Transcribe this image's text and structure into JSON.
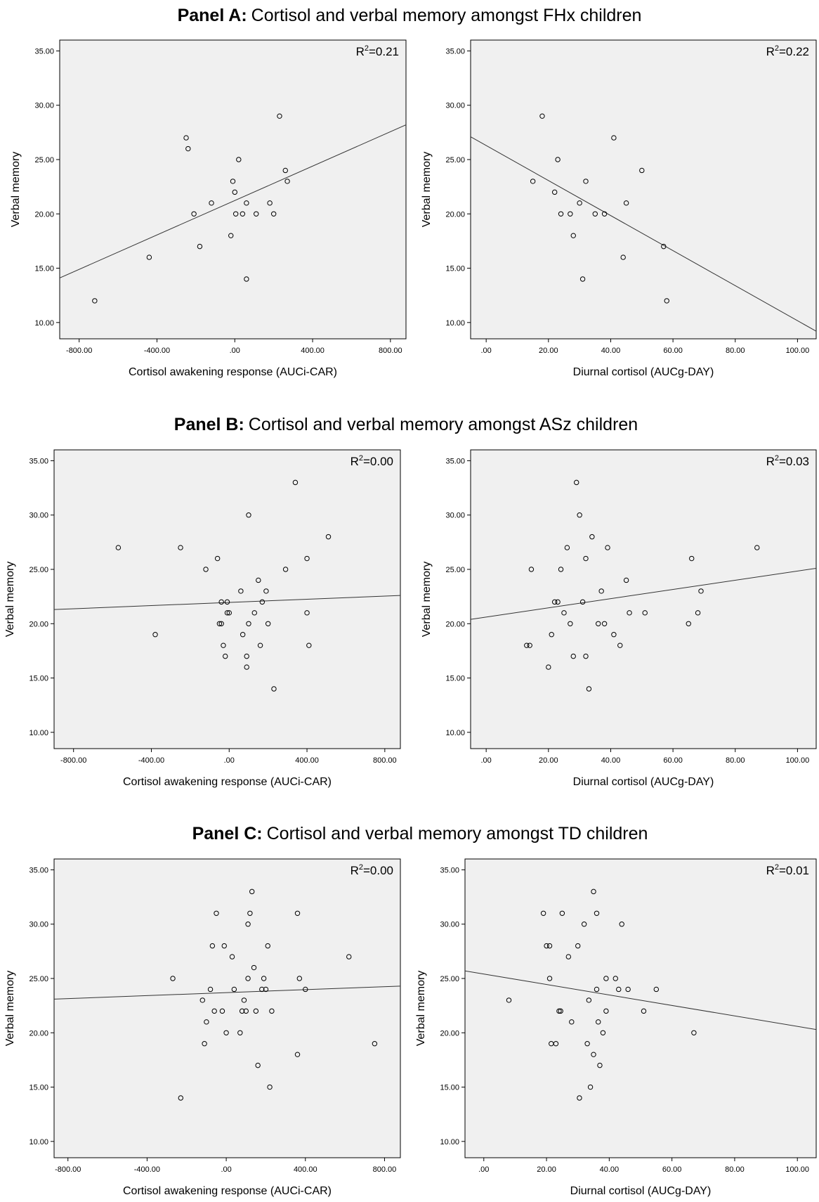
{
  "panels": [
    {
      "label": "Panel A:",
      "title": "Cortisol and verbal memory amongst FHx children"
    },
    {
      "label": "Panel B:",
      "title": "Cortisol and verbal memory amongst ASz children"
    },
    {
      "label": "Panel C:",
      "title": "Cortisol and verbal memory amongst TD children"
    }
  ],
  "chart_data": [
    {
      "id": "A-car",
      "type": "scatter",
      "xlabel": "Cortisol awakening response (AUCi-CAR)",
      "ylabel": "Verbal memory",
      "r2": "R",
      "r2_value": "=0.21",
      "xlim": [
        -900,
        880
      ],
      "ylim": [
        8.5,
        36
      ],
      "xticks": [
        -800,
        -400,
        0,
        400,
        800
      ],
      "xtick_labels": [
        "-800.00",
        "-400.00",
        ".00",
        "400.00",
        "800.00"
      ],
      "yticks": [
        10,
        15,
        20,
        25,
        30,
        35
      ],
      "ytick_labels": [
        "10.00",
        "15.00",
        "20.00",
        "25.00",
        "30.00",
        "35.00"
      ],
      "fit": {
        "x": [
          -900,
          880
        ],
        "y": [
          14.1,
          28.2
        ]
      },
      "x": [
        -720,
        -440,
        -250,
        -240,
        -210,
        -180,
        -120,
        -20,
        -10,
        0,
        5,
        20,
        40,
        60,
        60,
        110,
        180,
        200,
        230,
        260,
        270
      ],
      "y": [
        12,
        16,
        27,
        26,
        20,
        17,
        21,
        18,
        23,
        22,
        20,
        25,
        20,
        14,
        21,
        20,
        21,
        20,
        29,
        24,
        23
      ]
    },
    {
      "id": "A-day",
      "type": "scatter",
      "xlabel": "Diurnal cortisol (AUCg-DAY)",
      "ylabel": "Verbal memory",
      "r2": "R",
      "r2_value": "=0.22",
      "xlim": [
        -5,
        106
      ],
      "ylim": [
        8.5,
        36
      ],
      "xticks": [
        0,
        20,
        40,
        60,
        80,
        100
      ],
      "xtick_labels": [
        ".00",
        "20.00",
        "40.00",
        "60.00",
        "80.00",
        "100.00"
      ],
      "yticks": [
        10,
        15,
        20,
        25,
        30,
        35
      ],
      "ytick_labels": [
        "10.00",
        "15.00",
        "20.00",
        "25.00",
        "30.00",
        "35.00"
      ],
      "fit": {
        "x": [
          -5,
          106
        ],
        "y": [
          27.1,
          9.2
        ]
      },
      "x": [
        15,
        18,
        22,
        23,
        24,
        27,
        28,
        30,
        31,
        32,
        35,
        38,
        41,
        44,
        45,
        50,
        57,
        58
      ],
      "y": [
        23,
        29,
        22,
        25,
        20,
        20,
        18,
        21,
        14,
        23,
        20,
        20,
        27,
        16,
        21,
        24,
        17,
        12
      ]
    },
    {
      "id": "B-car",
      "type": "scatter",
      "xlabel": "Cortisol awakening response (AUCi-CAR)",
      "ylabel": "Verbal memory",
      "r2": "R",
      "r2_value": "=0.00",
      "xlim": [
        -900,
        880
      ],
      "ylim": [
        8.5,
        36
      ],
      "xticks": [
        -800,
        -400,
        0,
        400,
        800
      ],
      "xtick_labels": [
        "-800.00",
        "-400.00",
        ".00",
        "400.00",
        "800.00"
      ],
      "yticks": [
        10,
        15,
        20,
        25,
        30,
        35
      ],
      "ytick_labels": [
        "10.00",
        "15.00",
        "20.00",
        "25.00",
        "30.00",
        "35.00"
      ],
      "fit": {
        "x": [
          -900,
          880
        ],
        "y": [
          21.3,
          22.6
        ]
      },
      "x": [
        -570,
        -380,
        -250,
        -120,
        -60,
        -50,
        -40,
        -40,
        -30,
        -20,
        -10,
        -10,
        0,
        60,
        70,
        90,
        90,
        100,
        100,
        130,
        150,
        160,
        170,
        190,
        200,
        230,
        290,
        340,
        400,
        400,
        410,
        510
      ],
      "y": [
        27,
        19,
        27,
        25,
        26,
        20,
        20,
        22,
        18,
        17,
        21,
        22,
        21,
        23,
        19,
        16,
        17,
        20,
        30,
        21,
        24,
        18,
        22,
        23,
        20,
        14,
        25,
        33,
        26,
        21,
        18,
        28
      ]
    },
    {
      "id": "B-day",
      "type": "scatter",
      "xlabel": "Diurnal cortisol (AUCg-DAY)",
      "ylabel": "Verbal memory",
      "r2": "R",
      "r2_value": "=0.03",
      "xlim": [
        -5,
        106
      ],
      "ylim": [
        8.5,
        36
      ],
      "xticks": [
        0,
        20,
        40,
        60,
        80,
        100
      ],
      "xtick_labels": [
        ".00",
        "20.00",
        "40.00",
        "60.00",
        "80.00",
        "100.00"
      ],
      "yticks": [
        10,
        15,
        20,
        25,
        30,
        35
      ],
      "ytick_labels": [
        "10.00",
        "15.00",
        "20.00",
        "25.00",
        "30.00",
        "35.00"
      ],
      "fit": {
        "x": [
          -5,
          106
        ],
        "y": [
          20.4,
          25.1
        ]
      },
      "x": [
        13,
        14,
        14.5,
        20,
        21,
        22,
        23,
        24,
        25,
        26,
        27,
        28,
        29,
        30,
        31,
        32,
        32,
        33,
        34,
        36,
        37,
        38,
        39,
        41,
        43,
        45,
        46,
        51,
        65,
        66,
        68,
        69,
        87
      ],
      "y": [
        18,
        18,
        25,
        16,
        19,
        22,
        22,
        25,
        21,
        27,
        20,
        17,
        33,
        30,
        22,
        17,
        26,
        14,
        28,
        20,
        23,
        20,
        27,
        19,
        18,
        24,
        21,
        21,
        20,
        26,
        21,
        23,
        27
      ]
    },
    {
      "id": "C-car",
      "type": "scatter",
      "xlabel": "Cortisol awakening response (AUCi-CAR)",
      "ylabel": "Verbal memory",
      "r2": "R",
      "r2_value": "=0.00",
      "xlim": [
        -870,
        880
      ],
      "ylim": [
        8.5,
        36
      ],
      "xticks": [
        -800,
        -400,
        0,
        400,
        800
      ],
      "xtick_labels": [
        "-800.00",
        "-400.00",
        ".00",
        "400.00",
        "800.00"
      ],
      "yticks": [
        10,
        15,
        20,
        25,
        30,
        35
      ],
      "ytick_labels": [
        "10.00",
        "15.00",
        "20.00",
        "25.00",
        "30.00",
        "35.00"
      ],
      "fit": {
        "x": [
          -870,
          880
        ],
        "y": [
          23.1,
          24.3
        ]
      },
      "x": [
        -270,
        -230,
        -120,
        -110,
        -100,
        -80,
        -70,
        -60,
        -50,
        -20,
        -10,
        0,
        30,
        40,
        70,
        80,
        90,
        100,
        110,
        110,
        120,
        130,
        140,
        150,
        160,
        180,
        190,
        200,
        210,
        220,
        230,
        360,
        360,
        370,
        400,
        620,
        750
      ],
      "y": [
        25,
        14,
        23,
        19,
        21,
        24,
        28,
        22,
        31,
        22,
        28,
        20,
        27,
        24,
        20,
        22,
        23,
        22,
        30,
        25,
        31,
        33,
        26,
        22,
        17,
        24,
        25,
        24,
        28,
        15,
        22,
        31,
        18,
        25,
        24,
        27,
        19
      ]
    },
    {
      "id": "C-day",
      "type": "scatter",
      "xlabel": "Diurnal cortisol (AUCg-DAY)",
      "ylabel": "Verbal memory",
      "r2": "R",
      "r2_value": "=0.01",
      "xlim": [
        -6,
        106
      ],
      "ylim": [
        8.5,
        36
      ],
      "xticks": [
        0,
        20,
        40,
        60,
        80,
        100
      ],
      "xtick_labels": [
        ".00",
        "20.00",
        "40.00",
        "60.00",
        "80.00",
        "100.00"
      ],
      "yticks": [
        10,
        15,
        20,
        25,
        30,
        35
      ],
      "ytick_labels": [
        "10.00",
        "15.00",
        "20.00",
        "25.00",
        "30.00",
        "35.00"
      ],
      "fit": {
        "x": [
          -6,
          106
        ],
        "y": [
          25.7,
          20.3
        ]
      },
      "x": [
        8,
        19,
        20,
        21,
        21,
        21.5,
        23,
        24,
        24.5,
        25,
        27,
        28,
        30,
        30.5,
        32,
        33,
        33.5,
        34,
        35,
        35,
        36,
        36,
        36.5,
        37,
        38,
        39,
        39,
        42,
        43,
        44,
        46,
        51,
        55,
        67
      ],
      "y": [
        23,
        31,
        28,
        28,
        25,
        19,
        19,
        22,
        22,
        31,
        27,
        21,
        28,
        14,
        30,
        19,
        23,
        15,
        33,
        18,
        24,
        31,
        21,
        17,
        20,
        22,
        25,
        25,
        24,
        30,
        24,
        22,
        24,
        20
      ]
    }
  ]
}
